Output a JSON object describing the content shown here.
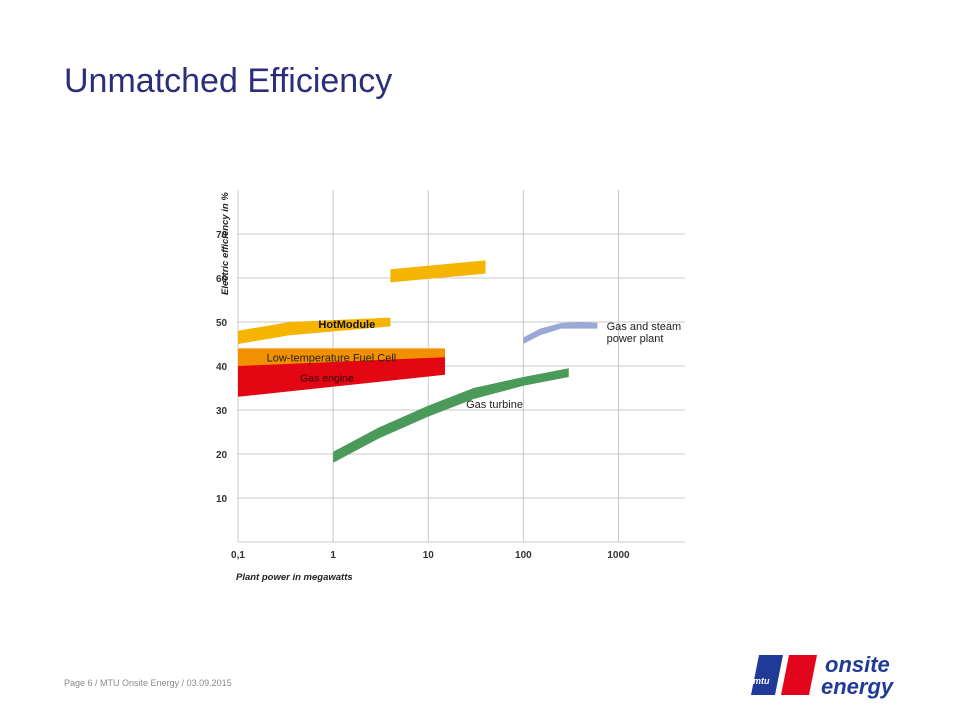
{
  "slide": {
    "title": "Unmatched Efficiency"
  },
  "footer": {
    "page": "Page 6",
    "company": "MTU Onsite Energy",
    "date": "03.09.2015"
  },
  "logo": {
    "brand_small": "mtu",
    "line1": "onsite",
    "line2": "energy",
    "color_blue": "#1f3b97",
    "color_red": "#e3051b"
  },
  "chart_data": {
    "type": "area",
    "xlabel": "Plant power in megawatts",
    "ylabel": "Electric efficiency in %",
    "x_scale": "log",
    "xlim": [
      0.1,
      5000
    ],
    "ylim": [
      0,
      80
    ],
    "x_ticks": [
      0.1,
      1,
      10,
      100,
      1000
    ],
    "x_tick_labels": [
      "0,1",
      "1",
      "10",
      "100",
      "1000"
    ],
    "y_ticks": [
      10,
      20,
      30,
      40,
      50,
      60,
      70
    ],
    "y_tick_labels": [
      "10",
      "20",
      "30",
      "40",
      "50",
      "60",
      "70"
    ],
    "grid": true,
    "series": [
      {
        "name": "HotModule",
        "color": "#f5b400",
        "x": [
          0.1,
          0.35,
          0.35,
          4,
          4,
          40
        ],
        "y_low": [
          45,
          47,
          47,
          49,
          59,
          61
        ],
        "y_high": [
          48,
          50,
          50,
          51,
          62,
          64
        ]
      },
      {
        "name": "Low-temperature Fuel Cell",
        "color": "#f29100",
        "x": [
          0.1,
          15
        ],
        "y_low": [
          40,
          40
        ],
        "y_high": [
          44,
          44
        ]
      },
      {
        "name": "Gas engine",
        "color": "#e30613",
        "x": [
          0.1,
          15
        ],
        "y_low": [
          33,
          38
        ],
        "y_high": [
          40,
          42
        ]
      },
      {
        "name": "Gas turbine",
        "color": "#4a9a5a",
        "x": [
          1,
          3,
          10,
          30,
          100,
          300
        ],
        "y_low": [
          18,
          23.5,
          28.5,
          32.5,
          35.5,
          37.5
        ],
        "y_high": [
          20.5,
          26,
          31,
          35,
          37.5,
          39.5
        ]
      },
      {
        "name": "Gas and steam power plant",
        "color": "#9aa8d6",
        "x": [
          100,
          150,
          250,
          400,
          600
        ],
        "y_low": [
          45,
          47,
          48.5,
          48.5,
          48.5
        ],
        "y_high": [
          46.5,
          48.5,
          49.8,
          50,
          49.8
        ]
      }
    ],
    "annotations": [
      {
        "text": "HotModule",
        "series": "HotModule"
      },
      {
        "text": "Low-temperature Fuel Cell",
        "series": "Low-temperature Fuel Cell"
      },
      {
        "text": "Gas engine",
        "series": "Gas engine"
      },
      {
        "text": "Gas turbine",
        "series": "Gas turbine"
      },
      {
        "text": "Gas and steam",
        "series": "Gas and steam power plant"
      },
      {
        "text": "power plant",
        "series": "Gas and steam power plant"
      }
    ]
  }
}
